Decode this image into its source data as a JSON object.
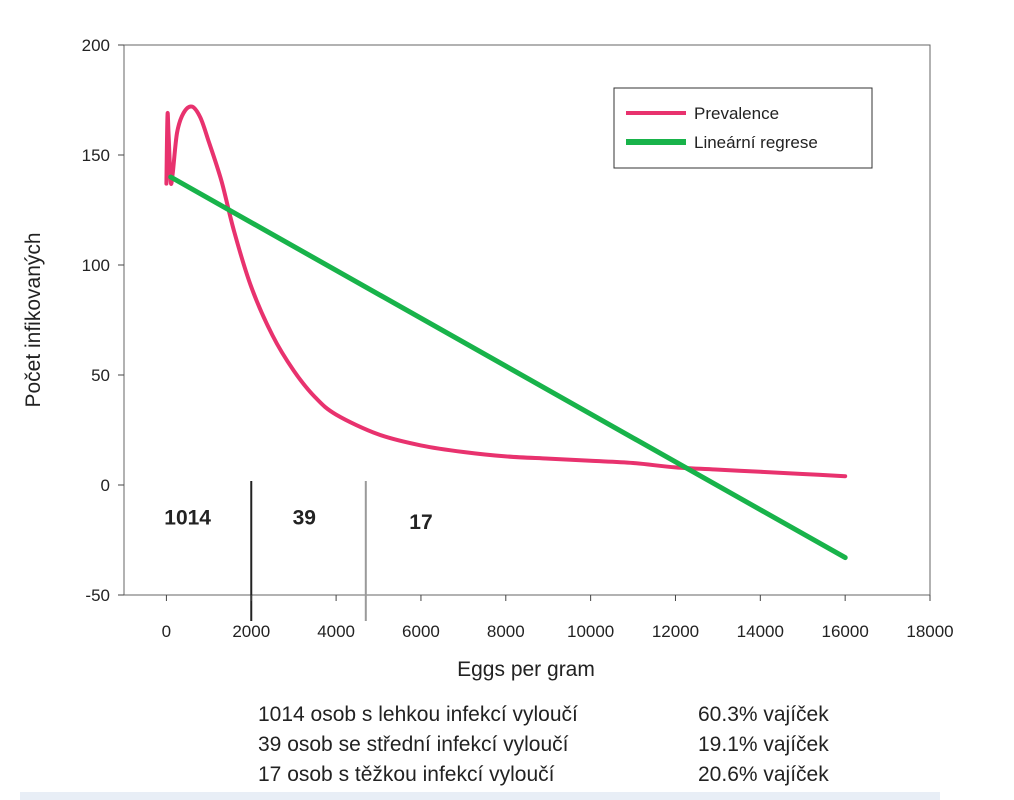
{
  "chart_data": {
    "type": "line",
    "xlabel": "Eggs per gram",
    "ylabel": "Počet infikovaných",
    "xlim": [
      -1000,
      18000
    ],
    "ylim": [
      -50,
      200
    ],
    "x_ticks": [
      "0",
      "2000",
      "4000",
      "6000",
      "8000",
      "10000",
      "12000",
      "14000",
      "16000",
      "18000"
    ],
    "y_ticks": [
      "-50",
      "0",
      "50",
      "100",
      "150",
      "200"
    ],
    "grid": false,
    "legend_position": "top-right",
    "series": [
      {
        "name": "Prevalence",
        "color": "#e8326e",
        "x": [
          0,
          25,
          50,
          100,
          150,
          250,
          400,
          600,
          800,
          1000,
          1300,
          1600,
          2000,
          2500,
          3000,
          3500,
          4000,
          5000,
          6000,
          7000,
          8000,
          9000,
          10000,
          11000,
          12000,
          13000,
          14000,
          15000,
          16000
        ],
        "y": [
          137,
          168,
          160,
          138,
          142,
          160,
          169,
          172,
          167,
          156,
          138,
          115,
          90,
          68,
          52,
          40,
          32,
          23,
          18,
          15,
          13,
          12,
          11,
          10,
          8,
          7,
          6,
          5,
          4
        ]
      },
      {
        "name": "Lineární regrese",
        "color": "#18b34a",
        "x": [
          100,
          16000
        ],
        "y": [
          140,
          -33
        ]
      }
    ],
    "dividers": [
      {
        "x": 2000,
        "color": "#222222"
      },
      {
        "x": 4700,
        "color": "#9a9a9a"
      }
    ],
    "region_labels": [
      {
        "text": "1014",
        "x": 500,
        "y": -18
      },
      {
        "text": "39",
        "x": 3250,
        "y": -18
      },
      {
        "text": "17",
        "x": 6000,
        "y": -20
      }
    ]
  },
  "summary": [
    {
      "text": "1014 osob s lehkou infekcí vyloučí",
      "pct": "60.3% vajíček"
    },
    {
      "text": "39 osob se střední infekcí vyloučí",
      "pct": "19.1% vajíček"
    },
    {
      "text": "17 osob s těžkou infekcí vyloučí",
      "pct": "20.6% vajíček"
    }
  ]
}
